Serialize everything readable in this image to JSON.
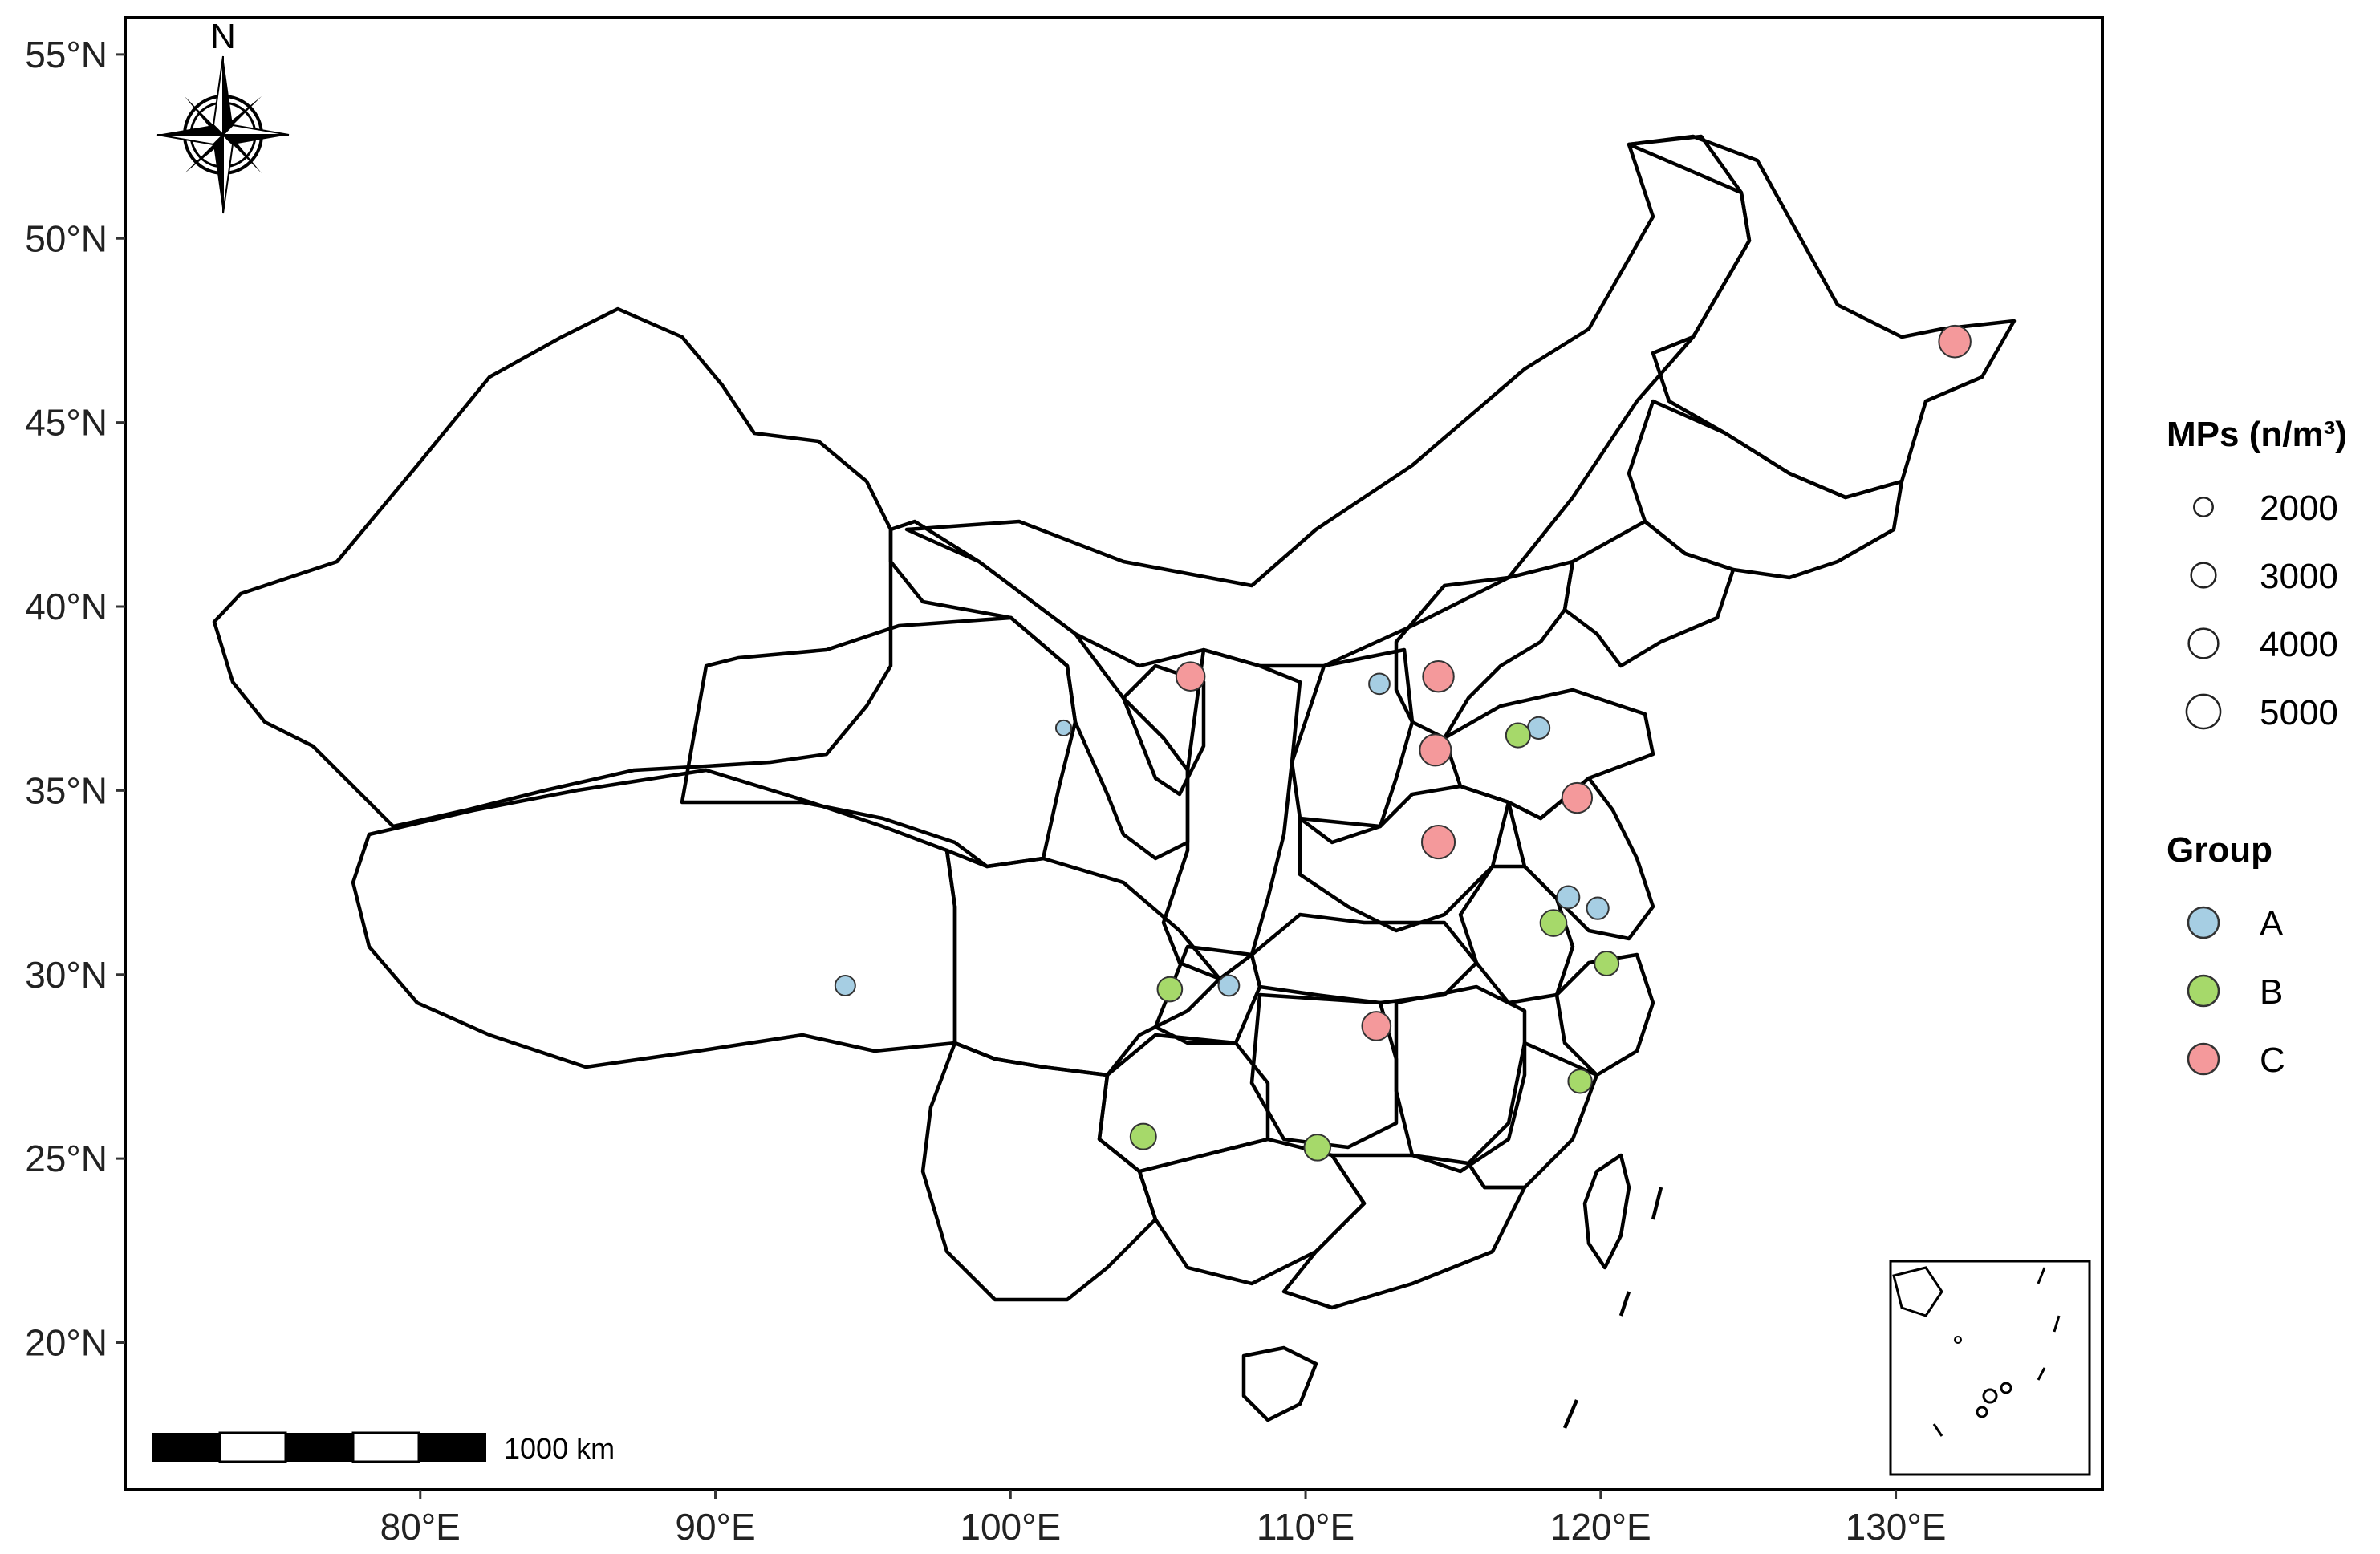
{
  "map": {
    "x_ticks": [
      "80°E",
      "90°E",
      "100°E",
      "110°E",
      "120°E",
      "130°E"
    ],
    "y_ticks": [
      "55°N",
      "50°N",
      "45°N",
      "40°N",
      "35°N",
      "30°N",
      "25°N",
      "20°N"
    ],
    "north_label": "N",
    "scale_label": "1000 km"
  },
  "legend": {
    "size_title": "MPs (n/m³)",
    "size_items": [
      {
        "label": "2000",
        "value": 2000
      },
      {
        "label": "3000",
        "value": 3000
      },
      {
        "label": "4000",
        "value": 4000
      },
      {
        "label": "5000",
        "value": 5000
      }
    ],
    "group_title": "Group",
    "group_items": [
      {
        "label": "A",
        "color": "#a6cee3"
      },
      {
        "label": "B",
        "color": "#a6d96a"
      },
      {
        "label": "C",
        "color": "#f4999b"
      }
    ]
  },
  "chart_data": {
    "type": "scatter",
    "xlim": [
      70,
      137
    ],
    "ylim": [
      16,
      56
    ],
    "series": [
      {
        "name": "A",
        "color": "#a6cee3",
        "points": [
          {
            "lon": 94.4,
            "lat": 29.7,
            "mps": 2200
          },
          {
            "lon": 101.8,
            "lat": 36.7,
            "mps": 1500
          },
          {
            "lon": 107.4,
            "lat": 29.7,
            "mps": 2300
          },
          {
            "lon": 112.5,
            "lat": 37.9,
            "mps": 2300
          },
          {
            "lon": 117.9,
            "lat": 36.7,
            "mps": 2500
          },
          {
            "lon": 118.9,
            "lat": 32.1,
            "mps": 2600
          },
          {
            "lon": 119.9,
            "lat": 31.8,
            "mps": 2500
          }
        ]
      },
      {
        "name": "B",
        "color": "#a6d96a",
        "points": [
          {
            "lon": 105.4,
            "lat": 29.6,
            "mps": 3000
          },
          {
            "lon": 104.5,
            "lat": 25.6,
            "mps": 3200
          },
          {
            "lon": 110.4,
            "lat": 25.3,
            "mps": 3300
          },
          {
            "lon": 117.2,
            "lat": 36.5,
            "mps": 2900
          },
          {
            "lon": 118.4,
            "lat": 31.4,
            "mps": 3300
          },
          {
            "lon": 120.2,
            "lat": 30.3,
            "mps": 2900
          },
          {
            "lon": 119.3,
            "lat": 27.1,
            "mps": 2800
          }
        ]
      },
      {
        "name": "C",
        "color": "#f4999b",
        "points": [
          {
            "lon": 106.1,
            "lat": 38.1,
            "mps": 3800
          },
          {
            "lon": 114.5,
            "lat": 38.1,
            "mps": 4300
          },
          {
            "lon": 114.4,
            "lat": 36.1,
            "mps": 4400
          },
          {
            "lon": 114.5,
            "lat": 33.6,
            "mps": 4800
          },
          {
            "lon": 119.2,
            "lat": 34.8,
            "mps": 4100
          },
          {
            "lon": 112.4,
            "lat": 28.6,
            "mps": 3800
          },
          {
            "lon": 132.0,
            "lat": 47.2,
            "mps": 4500
          }
        ]
      }
    ]
  }
}
